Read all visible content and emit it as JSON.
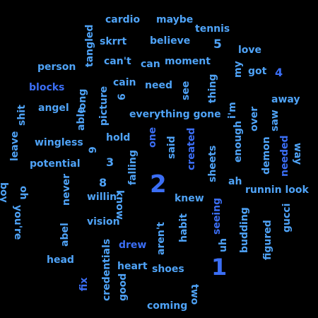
{
  "palette": {
    "background": "#000000",
    "blue": "#3b6ef5",
    "sky": "#4fa3f7",
    "azure": "#3f86f0"
  },
  "words": [
    {
      "text": "cardio",
      "color": "#4fa3f7"
    },
    {
      "text": "maybe",
      "color": "#4fa3f7"
    },
    {
      "text": "tennis",
      "color": "#4fa3f7"
    },
    {
      "text": "skrrt",
      "color": "#4fa3f7"
    },
    {
      "text": "believe",
      "color": "#4fa3f7"
    },
    {
      "text": "tangled",
      "color": "#4fa3f7"
    },
    {
      "text": "5",
      "color": "#4fa3f7"
    },
    {
      "text": "love",
      "color": "#4fa3f7"
    },
    {
      "text": "person",
      "color": "#4fa3f7"
    },
    {
      "text": "can't",
      "color": "#4fa3f7"
    },
    {
      "text": "can",
      "color": "#4fa3f7"
    },
    {
      "text": "moment",
      "color": "#4fa3f7"
    },
    {
      "text": "my",
      "color": "#4fa3f7"
    },
    {
      "text": "got",
      "color": "#4fa3f7"
    },
    {
      "text": "4",
      "color": "#3b6ef5"
    },
    {
      "text": "blocks",
      "color": "#3b6ef5"
    },
    {
      "text": "cain",
      "color": "#4fa3f7"
    },
    {
      "text": "need",
      "color": "#4fa3f7"
    },
    {
      "text": "thing",
      "color": "#4fa3f7"
    },
    {
      "text": "long",
      "color": "#4fa3f7"
    },
    {
      "text": "see",
      "color": "#4fa3f7"
    },
    {
      "text": "away",
      "color": "#4fa3f7"
    },
    {
      "text": "angel",
      "color": "#4fa3f7"
    },
    {
      "text": "able",
      "color": "#4fa3f7"
    },
    {
      "text": "picture",
      "color": "#4fa3f7"
    },
    {
      "text": "6",
      "color": "#4fa3f7"
    },
    {
      "text": "everything gone",
      "color": "#4fa3f7"
    },
    {
      "text": "i'm",
      "color": "#4fa3f7"
    },
    {
      "text": "over",
      "color": "#4fa3f7"
    },
    {
      "text": "saw",
      "color": "#4fa3f7"
    },
    {
      "text": "shit",
      "color": "#4fa3f7"
    },
    {
      "text": "leave",
      "color": "#4fa3f7"
    },
    {
      "text": "boy",
      "color": "#4fa3f7"
    },
    {
      "text": "one",
      "color": "#3b6ef5"
    },
    {
      "text": "hold",
      "color": "#4fa3f7"
    },
    {
      "text": "said",
      "color": "#4fa3f7"
    },
    {
      "text": "created",
      "color": "#3b6ef5"
    },
    {
      "text": "sheets",
      "color": "#4fa3f7"
    },
    {
      "text": "enough",
      "color": "#4fa3f7"
    },
    {
      "text": "demon",
      "color": "#4fa3f7"
    },
    {
      "text": "needed",
      "color": "#3b6ef5"
    },
    {
      "text": "way",
      "color": "#4fa3f7"
    },
    {
      "text": "wingless",
      "color": "#4fa3f7"
    },
    {
      "text": "9",
      "color": "#4fa3f7"
    },
    {
      "text": "potential",
      "color": "#4fa3f7"
    },
    {
      "text": "3",
      "color": "#4fa3f7"
    },
    {
      "text": "falling",
      "color": "#4fa3f7"
    },
    {
      "text": "2",
      "color": "#3b6ef5"
    },
    {
      "text": "8",
      "color": "#4fa3f7"
    },
    {
      "text": "ah",
      "color": "#4fa3f7"
    },
    {
      "text": "runnin look",
      "color": "#4fa3f7"
    },
    {
      "text": "oh",
      "color": "#4fa3f7"
    },
    {
      "text": "you're",
      "color": "#4fa3f7"
    },
    {
      "text": "never",
      "color": "#4fa3f7"
    },
    {
      "text": "willin'",
      "color": "#4fa3f7"
    },
    {
      "text": "know",
      "color": "#4fa3f7"
    },
    {
      "text": "knew",
      "color": "#4fa3f7"
    },
    {
      "text": "gucci",
      "color": "#4fa3f7"
    },
    {
      "text": "seeing",
      "color": "#3b6ef5"
    },
    {
      "text": "budding",
      "color": "#4fa3f7"
    },
    {
      "text": "figured",
      "color": "#4fa3f7"
    },
    {
      "text": "abel",
      "color": "#4fa3f7"
    },
    {
      "text": "vision",
      "color": "#4fa3f7"
    },
    {
      "text": "habit",
      "color": "#4fa3f7"
    },
    {
      "text": "aren't",
      "color": "#4fa3f7"
    },
    {
      "text": "uh",
      "color": "#4fa3f7"
    },
    {
      "text": "drew",
      "color": "#3b6ef5"
    },
    {
      "text": "head",
      "color": "#4fa3f7"
    },
    {
      "text": "credentials",
      "color": "#4fa3f7"
    },
    {
      "text": "1",
      "color": "#3b6ef5"
    },
    {
      "text": "heart",
      "color": "#4fa3f7"
    },
    {
      "text": "shoes",
      "color": "#4fa3f7"
    },
    {
      "text": "fix",
      "color": "#3b6ef5"
    },
    {
      "text": "good",
      "color": "#4fa3f7"
    },
    {
      "text": "two",
      "color": "#4fa3f7"
    },
    {
      "text": "coming",
      "color": "#4fa3f7"
    }
  ]
}
